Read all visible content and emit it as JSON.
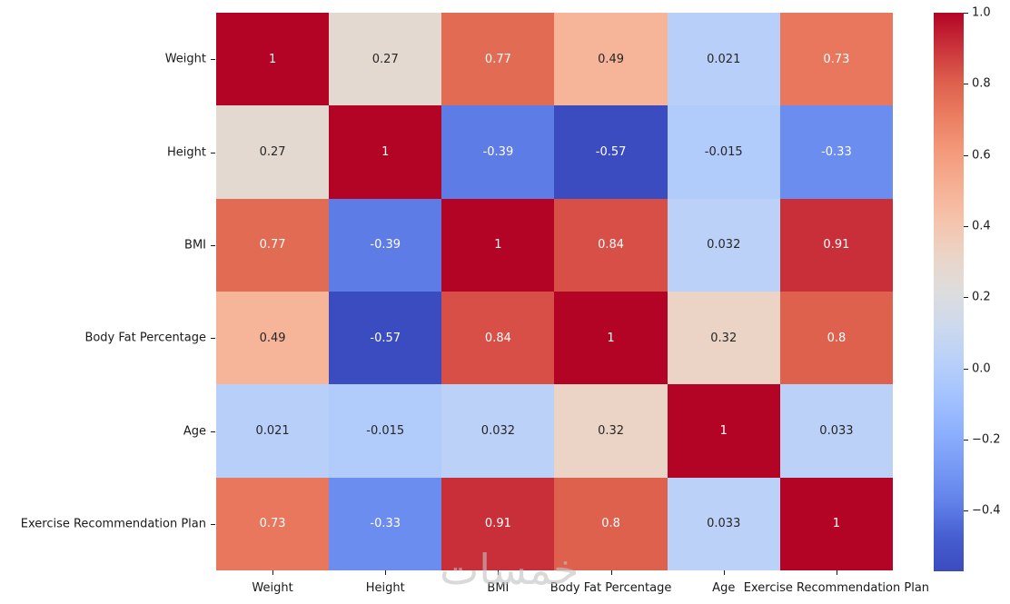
{
  "chart_data": {
    "type": "heatmap",
    "title": "",
    "xlabel": "",
    "ylabel": "",
    "categories": [
      "Weight",
      "Height",
      "BMI",
      "Body Fat Percentage",
      "Age",
      "Exercise Recommendation Plan"
    ],
    "matrix": [
      [
        1,
        0.27,
        0.77,
        0.49,
        0.021,
        0.73
      ],
      [
        0.27,
        1,
        -0.39,
        -0.57,
        -0.015,
        -0.33
      ],
      [
        0.77,
        -0.39,
        1,
        0.84,
        0.032,
        0.91
      ],
      [
        0.49,
        -0.57,
        0.84,
        1,
        0.32,
        0.8
      ],
      [
        0.021,
        -0.015,
        0.032,
        0.32,
        1,
        0.033
      ],
      [
        0.73,
        -0.33,
        0.91,
        0.8,
        0.033,
        1
      ]
    ],
    "annotations": [
      [
        "1",
        "0.27",
        "0.77",
        "0.49",
        "0.021",
        "0.73"
      ],
      [
        "0.27",
        "1",
        "-0.39",
        "-0.57",
        "-0.015",
        "-0.33"
      ],
      [
        "0.77",
        "-0.39",
        "1",
        "0.84",
        "0.032",
        "0.91"
      ],
      [
        "0.49",
        "-0.57",
        "0.84",
        "1",
        "0.32",
        "0.8"
      ],
      [
        "0.021",
        "-0.015",
        "0.032",
        "0.32",
        "1",
        "0.033"
      ],
      [
        "0.73",
        "-0.33",
        "0.91",
        "0.8",
        "0.033",
        "1"
      ]
    ],
    "colormap": "coolwarm",
    "vmin": -0.57,
    "vmax": 1.0,
    "colorbar_ticks": [
      1.0,
      0.8,
      0.6,
      0.4,
      0.2,
      0.0,
      -0.2,
      -0.4
    ],
    "colorbar_tick_labels": [
      "1.0",
      "0.8",
      "0.6",
      "0.4",
      "0.2",
      "0.0",
      "−0.2",
      "−0.4"
    ],
    "legend_position": "right-colorbar",
    "grid": false
  },
  "colors": {
    "background": "#ffffff",
    "max_color": "#b40426",
    "mid_color": "#dddddd",
    "min_color": "#3b4cc0",
    "axis_text": "#1a1a1a",
    "annotation_dark": "#262626",
    "annotation_light": "#ffffff"
  },
  "watermark": {
    "text": "خمسات"
  }
}
